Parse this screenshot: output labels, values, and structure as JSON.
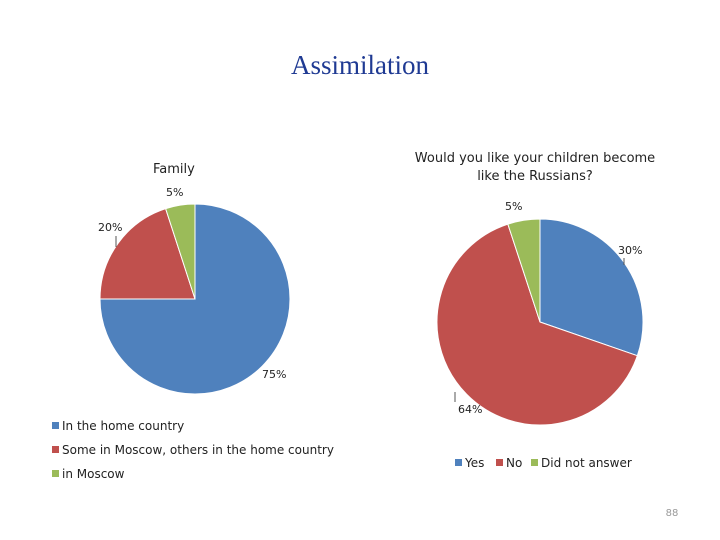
{
  "slide": {
    "title": "Assimilation",
    "page_number": "88"
  },
  "colors": {
    "blue": "#4f81bd",
    "red": "#c0504d",
    "green": "#9bbb59",
    "leader": "#555555"
  },
  "chart_data": [
    {
      "type": "pie",
      "title": "Family",
      "categories": [
        "In the home country",
        "Some in Moscow, others in the home country",
        "in Moscow"
      ],
      "values": [
        75,
        20,
        5
      ],
      "data_labels": [
        "75%",
        "20%",
        "5%"
      ],
      "legend": "bottom-left"
    },
    {
      "type": "pie",
      "title": "Would you like your children become like the Russians?",
      "title_lines": [
        "Would you like your children become",
        "like the Russians?"
      ],
      "categories": [
        "Yes",
        "No",
        "Did not answer"
      ],
      "values": [
        30,
        64,
        5
      ],
      "data_labels": [
        "30%",
        "64%",
        "5%"
      ],
      "legend": "bottom"
    }
  ]
}
